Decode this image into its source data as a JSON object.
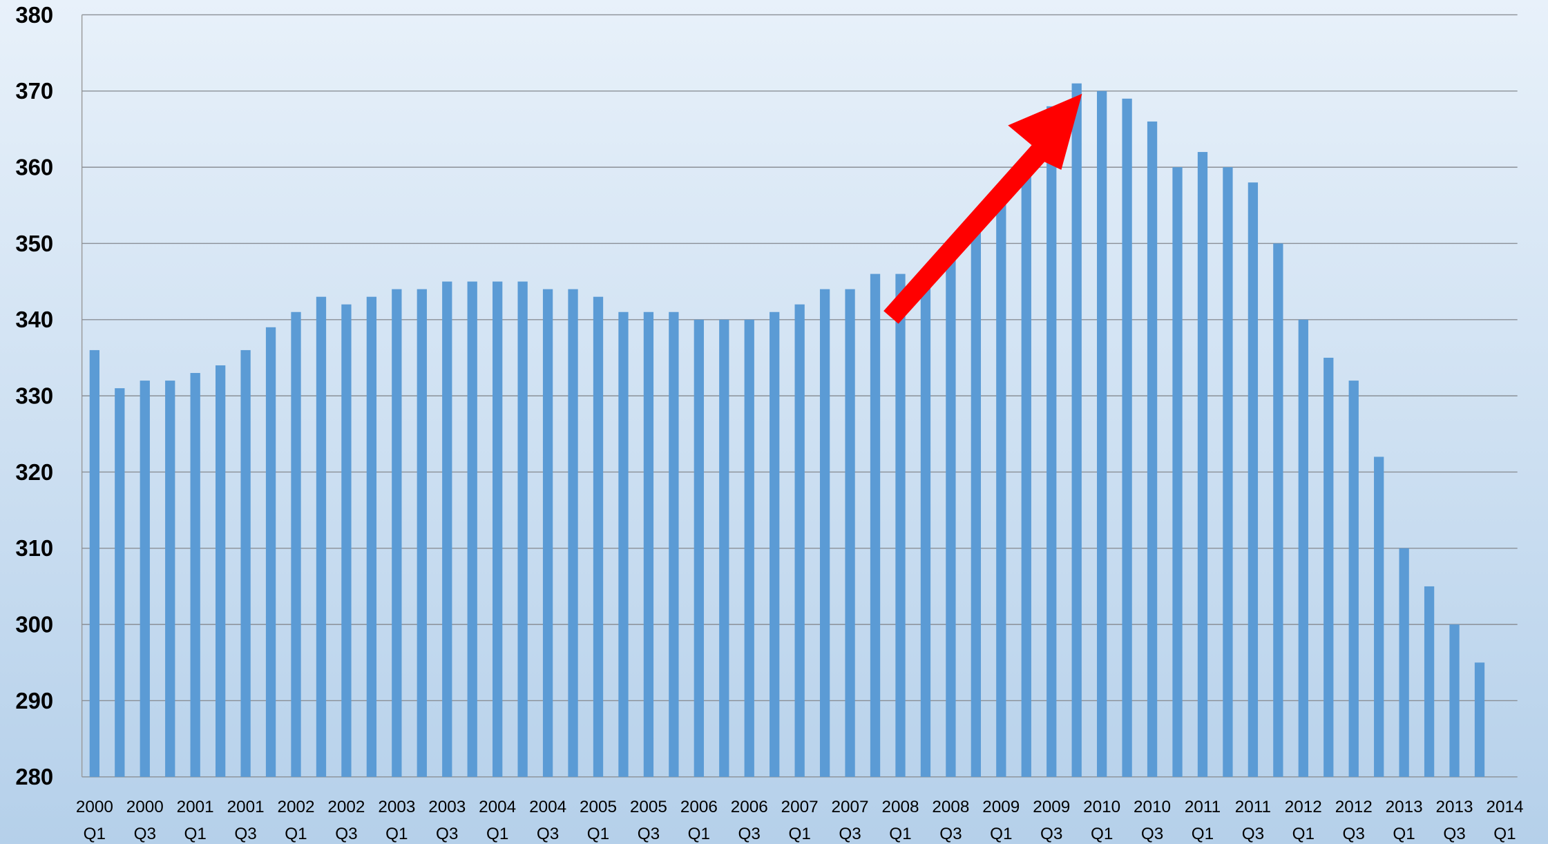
{
  "chart_data": {
    "type": "bar",
    "color": "#5b9bd5",
    "grid": true,
    "ylim": [
      280,
      380
    ],
    "yticks": [
      280,
      290,
      300,
      310,
      320,
      330,
      340,
      350,
      360,
      370,
      380
    ],
    "categories": [
      [
        "2000",
        "Q1"
      ],
      null,
      [
        "2000",
        "Q3"
      ],
      null,
      [
        "2001",
        "Q1"
      ],
      null,
      [
        "2001",
        "Q3"
      ],
      null,
      [
        "2002",
        "Q1"
      ],
      null,
      [
        "2002",
        "Q3"
      ],
      null,
      [
        "2003",
        "Q1"
      ],
      null,
      [
        "2003",
        "Q3"
      ],
      null,
      [
        "2004",
        "Q1"
      ],
      null,
      [
        "2004",
        "Q3"
      ],
      null,
      [
        "2005",
        "Q1"
      ],
      null,
      [
        "2005",
        "Q3"
      ],
      null,
      [
        "2006",
        "Q1"
      ],
      null,
      [
        "2006",
        "Q3"
      ],
      null,
      [
        "2007",
        "Q1"
      ],
      null,
      [
        "2007",
        "Q3"
      ],
      null,
      [
        "2008",
        "Q1"
      ],
      null,
      [
        "2008",
        "Q3"
      ],
      null,
      [
        "2009",
        "Q1"
      ],
      null,
      [
        "2009",
        "Q3"
      ],
      null,
      [
        "2010",
        "Q1"
      ],
      null,
      [
        "2010",
        "Q3"
      ],
      null,
      [
        "2011",
        "Q1"
      ],
      null,
      [
        "2011",
        "Q3"
      ],
      null,
      [
        "2012",
        "Q1"
      ],
      null,
      [
        "2012",
        "Q3"
      ],
      null,
      [
        "2013",
        "Q1"
      ],
      null,
      [
        "2013",
        "Q3"
      ],
      null,
      [
        "2014",
        "Q1"
      ]
    ],
    "values": [
      336,
      331,
      332,
      332,
      333,
      334,
      336,
      339,
      341,
      343,
      342,
      343,
      344,
      344,
      345,
      345,
      345,
      345,
      344,
      344,
      343,
      341,
      341,
      341,
      340,
      340,
      340,
      341,
      342,
      344,
      344,
      346,
      346,
      345,
      348,
      352,
      356,
      360,
      368,
      371,
      370,
      369,
      366,
      360,
      362,
      360,
      358,
      350,
      340,
      335,
      332,
      322,
      310,
      305,
      300,
      295,
      null
    ]
  }
}
